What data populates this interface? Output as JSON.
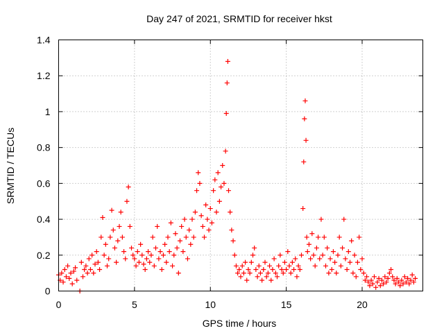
{
  "chart_data": {
    "type": "scatter",
    "title": "Day 247 of 2021, SRMTID for receiver hkst",
    "xlabel": "GPS time / hours",
    "ylabel": "SRMTID / TECUs",
    "xlim": [
      0,
      24
    ],
    "ylim": [
      0,
      1.4
    ],
    "x_ticks": [
      0,
      5,
      10,
      15,
      20
    ],
    "x_tick_labels": [
      "0",
      "5",
      "10",
      "15",
      "20"
    ],
    "y_ticks": [
      0,
      0.2,
      0.4,
      0.6,
      0.8,
      1.0,
      1.2,
      1.4
    ],
    "y_tick_labels": [
      "0",
      "0.2",
      "0.4",
      "0.6",
      "0.8",
      "1",
      "1.2",
      "1.4"
    ],
    "grid": true,
    "marker": "plus",
    "series": [
      {
        "name": "SRMTID",
        "color": "#ff0000",
        "points": [
          [
            0.0,
            0.09
          ],
          [
            0.1,
            0.06
          ],
          [
            0.2,
            0.1
          ],
          [
            0.3,
            0.05
          ],
          [
            0.4,
            0.12
          ],
          [
            0.5,
            0.08
          ],
          [
            0.6,
            0.14
          ],
          [
            0.7,
            0.07
          ],
          [
            0.8,
            0.1
          ],
          [
            0.9,
            0.04
          ],
          [
            1.0,
            0.11
          ],
          [
            1.1,
            0.13
          ],
          [
            1.2,
            0.06
          ],
          [
            1.4,
            0.0
          ],
          [
            1.5,
            0.16
          ],
          [
            1.6,
            0.08
          ],
          [
            1.7,
            0.12
          ],
          [
            1.8,
            0.14
          ],
          [
            1.9,
            0.1
          ],
          [
            2.0,
            0.18
          ],
          [
            2.1,
            0.12
          ],
          [
            2.2,
            0.2
          ],
          [
            2.3,
            0.1
          ],
          [
            2.4,
            0.15
          ],
          [
            2.5,
            0.22
          ],
          [
            2.6,
            0.16
          ],
          [
            2.7,
            0.12
          ],
          [
            2.8,
            0.3
          ],
          [
            2.9,
            0.41
          ],
          [
            3.0,
            0.2
          ],
          [
            3.1,
            0.26
          ],
          [
            3.2,
            0.14
          ],
          [
            3.3,
            0.18
          ],
          [
            3.4,
            0.3
          ],
          [
            3.5,
            0.45
          ],
          [
            3.6,
            0.34
          ],
          [
            3.7,
            0.24
          ],
          [
            3.8,
            0.16
          ],
          [
            3.9,
            0.28
          ],
          [
            4.0,
            0.36
          ],
          [
            4.1,
            0.44
          ],
          [
            4.2,
            0.3
          ],
          [
            4.3,
            0.22
          ],
          [
            4.4,
            0.18
          ],
          [
            4.5,
            0.5
          ],
          [
            4.6,
            0.58
          ],
          [
            4.7,
            0.36
          ],
          [
            4.8,
            0.24
          ],
          [
            4.9,
            0.2
          ],
          [
            5.0,
            0.18
          ],
          [
            5.1,
            0.14
          ],
          [
            5.2,
            0.22
          ],
          [
            5.3,
            0.16
          ],
          [
            5.4,
            0.26
          ],
          [
            5.5,
            0.2
          ],
          [
            5.6,
            0.15
          ],
          [
            5.7,
            0.12
          ],
          [
            5.8,
            0.18
          ],
          [
            5.9,
            0.22
          ],
          [
            6.0,
            0.16
          ],
          [
            6.1,
            0.2
          ],
          [
            6.2,
            0.3
          ],
          [
            6.3,
            0.14
          ],
          [
            6.4,
            0.24
          ],
          [
            6.5,
            0.36
          ],
          [
            6.6,
            0.18
          ],
          [
            6.7,
            0.22
          ],
          [
            6.8,
            0.12
          ],
          [
            6.9,
            0.2
          ],
          [
            7.0,
            0.26
          ],
          [
            7.1,
            0.16
          ],
          [
            7.2,
            0.3
          ],
          [
            7.3,
            0.22
          ],
          [
            7.4,
            0.38
          ],
          [
            7.5,
            0.14
          ],
          [
            7.6,
            0.2
          ],
          [
            7.7,
            0.32
          ],
          [
            7.8,
            0.24
          ],
          [
            7.9,
            0.1
          ],
          [
            8.0,
            0.28
          ],
          [
            8.1,
            0.36
          ],
          [
            8.2,
            0.22
          ],
          [
            8.3,
            0.4
          ],
          [
            8.4,
            0.3
          ],
          [
            8.5,
            0.18
          ],
          [
            8.6,
            0.34
          ],
          [
            8.7,
            0.26
          ],
          [
            8.8,
            0.4
          ],
          [
            8.9,
            0.3
          ],
          [
            9.0,
            0.44
          ],
          [
            9.1,
            0.56
          ],
          [
            9.2,
            0.66
          ],
          [
            9.3,
            0.6
          ],
          [
            9.4,
            0.42
          ],
          [
            9.5,
            0.36
          ],
          [
            9.6,
            0.3
          ],
          [
            9.7,
            0.48
          ],
          [
            9.8,
            0.4
          ],
          [
            9.9,
            0.34
          ],
          [
            10.0,
            0.46
          ],
          [
            10.1,
            0.38
          ],
          [
            10.2,
            0.56
          ],
          [
            10.3,
            0.62
          ],
          [
            10.4,
            0.44
          ],
          [
            10.5,
            0.66
          ],
          [
            10.6,
            0.5
          ],
          [
            10.7,
            0.58
          ],
          [
            10.8,
            0.7
          ],
          [
            10.9,
            0.6
          ],
          [
            11.0,
            0.78
          ],
          [
            11.05,
            0.99
          ],
          [
            11.1,
            1.16
          ],
          [
            11.15,
            1.28
          ],
          [
            11.2,
            0.56
          ],
          [
            11.3,
            0.44
          ],
          [
            11.4,
            0.34
          ],
          [
            11.5,
            0.28
          ],
          [
            11.6,
            0.2
          ],
          [
            11.7,
            0.14
          ],
          [
            11.8,
            0.1
          ],
          [
            11.9,
            0.12
          ],
          [
            12.0,
            0.08
          ],
          [
            12.1,
            0.14
          ],
          [
            12.2,
            0.1
          ],
          [
            12.3,
            0.16
          ],
          [
            12.4,
            0.06
          ],
          [
            12.5,
            0.12
          ],
          [
            12.6,
            0.1
          ],
          [
            12.7,
            0.16
          ],
          [
            12.8,
            0.2
          ],
          [
            12.9,
            0.24
          ],
          [
            13.0,
            0.12
          ],
          [
            13.1,
            0.08
          ],
          [
            13.2,
            0.14
          ],
          [
            13.3,
            0.1
          ],
          [
            13.4,
            0.06
          ],
          [
            13.5,
            0.12
          ],
          [
            13.6,
            0.16
          ],
          [
            13.7,
            0.08
          ],
          [
            13.8,
            0.1
          ],
          [
            13.9,
            0.14
          ],
          [
            14.0,
            0.06
          ],
          [
            14.1,
            0.12
          ],
          [
            14.2,
            0.18
          ],
          [
            14.3,
            0.1
          ],
          [
            14.4,
            0.08
          ],
          [
            14.5,
            0.14
          ],
          [
            14.6,
            0.2
          ],
          [
            14.7,
            0.12
          ],
          [
            14.8,
            0.1
          ],
          [
            14.9,
            0.16
          ],
          [
            15.0,
            0.12
          ],
          [
            15.1,
            0.22
          ],
          [
            15.2,
            0.14
          ],
          [
            15.3,
            0.1
          ],
          [
            15.4,
            0.16
          ],
          [
            15.5,
            0.12
          ],
          [
            15.6,
            0.18
          ],
          [
            15.7,
            0.08
          ],
          [
            15.8,
            0.14
          ],
          [
            15.9,
            0.12
          ],
          [
            16.0,
            0.2
          ],
          [
            16.1,
            0.46
          ],
          [
            16.15,
            0.72
          ],
          [
            16.2,
            0.96
          ],
          [
            16.25,
            1.06
          ],
          [
            16.3,
            0.84
          ],
          [
            16.35,
            0.3
          ],
          [
            16.4,
            0.22
          ],
          [
            16.5,
            0.26
          ],
          [
            16.6,
            0.18
          ],
          [
            16.7,
            0.32
          ],
          [
            16.8,
            0.2
          ],
          [
            16.9,
            0.14
          ],
          [
            17.0,
            0.24
          ],
          [
            17.1,
            0.3
          ],
          [
            17.2,
            0.18
          ],
          [
            17.3,
            0.4
          ],
          [
            17.4,
            0.2
          ],
          [
            17.5,
            0.3
          ],
          [
            17.6,
            0.14
          ],
          [
            17.7,
            0.24
          ],
          [
            17.8,
            0.1
          ],
          [
            17.9,
            0.18
          ],
          [
            18.0,
            0.12
          ],
          [
            18.1,
            0.22
          ],
          [
            18.2,
            0.16
          ],
          [
            18.3,
            0.1
          ],
          [
            18.4,
            0.2
          ],
          [
            18.5,
            0.3
          ],
          [
            18.6,
            0.14
          ],
          [
            18.7,
            0.24
          ],
          [
            18.8,
            0.4
          ],
          [
            18.9,
            0.18
          ],
          [
            19.0,
            0.12
          ],
          [
            19.1,
            0.22
          ],
          [
            19.2,
            0.16
          ],
          [
            19.3,
            0.28
          ],
          [
            19.4,
            0.1
          ],
          [
            19.5,
            0.2
          ],
          [
            19.6,
            0.08
          ],
          [
            19.7,
            0.16
          ],
          [
            19.8,
            0.3
          ],
          [
            19.9,
            0.12
          ],
          [
            20.0,
            0.18
          ],
          [
            20.1,
            0.1
          ],
          [
            20.2,
            0.06
          ],
          [
            20.3,
            0.08
          ],
          [
            20.4,
            0.05
          ],
          [
            20.5,
            0.03
          ],
          [
            20.6,
            0.06
          ],
          [
            20.7,
            0.04
          ],
          [
            20.8,
            0.08
          ],
          [
            20.9,
            0.02
          ],
          [
            21.0,
            0.05
          ],
          [
            21.1,
            0.07
          ],
          [
            21.2,
            0.03
          ],
          [
            21.3,
            0.06
          ],
          [
            21.4,
            0.04
          ],
          [
            21.5,
            0.08
          ],
          [
            21.6,
            0.05
          ],
          [
            21.7,
            0.07
          ],
          [
            21.8,
            0.1
          ],
          [
            21.9,
            0.12
          ],
          [
            22.0,
            0.08
          ],
          [
            22.1,
            0.06
          ],
          [
            22.2,
            0.04
          ],
          [
            22.3,
            0.07
          ],
          [
            22.4,
            0.05
          ],
          [
            22.5,
            0.03
          ],
          [
            22.6,
            0.06
          ],
          [
            22.7,
            0.04
          ],
          [
            22.8,
            0.08
          ],
          [
            22.9,
            0.05
          ],
          [
            23.0,
            0.07
          ],
          [
            23.1,
            0.04
          ],
          [
            23.2,
            0.06
          ],
          [
            23.3,
            0.09
          ],
          [
            23.4,
            0.05
          ],
          [
            23.5,
            0.07
          ]
        ]
      }
    ]
  }
}
